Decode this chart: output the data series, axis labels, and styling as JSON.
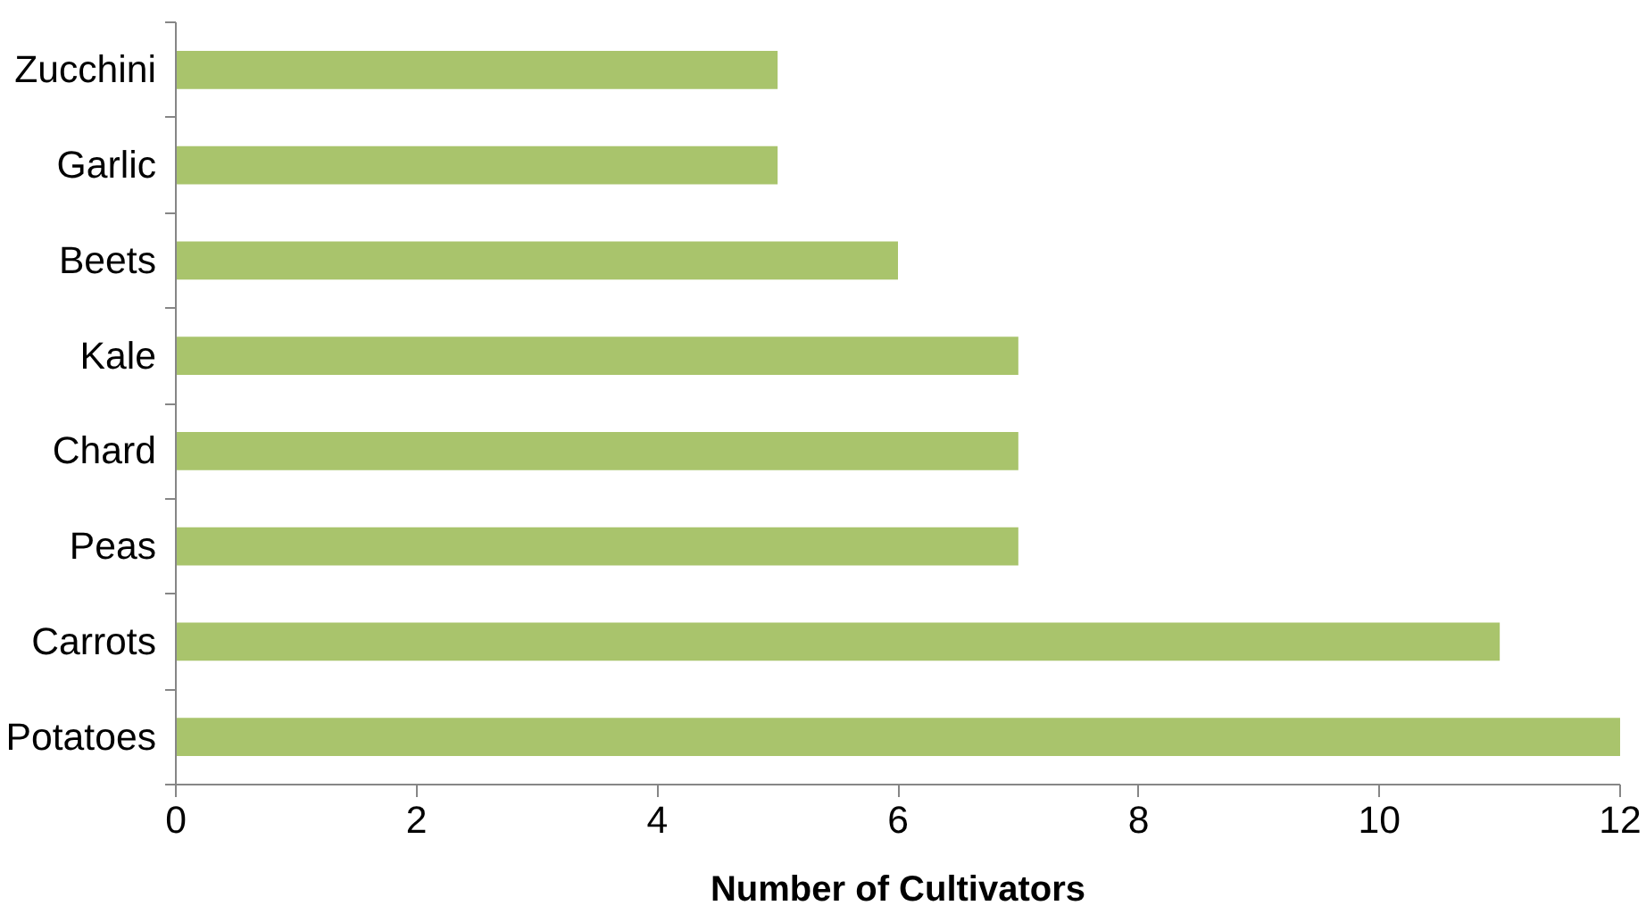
{
  "chart_data": {
    "type": "bar",
    "orientation": "horizontal",
    "xlabel": "Number of Cultivators",
    "categories": [
      "Zucchini",
      "Garlic",
      "Beets",
      "Kale",
      "Chard",
      "Peas",
      "Carrots",
      "Potatoes"
    ],
    "values": [
      5,
      5,
      6,
      7,
      7,
      7,
      11,
      12
    ],
    "color": "#a9c46c",
    "xlim": [
      0,
      12
    ],
    "xticks": [
      0,
      2,
      4,
      6,
      8,
      10,
      12
    ],
    "grid": false
  }
}
